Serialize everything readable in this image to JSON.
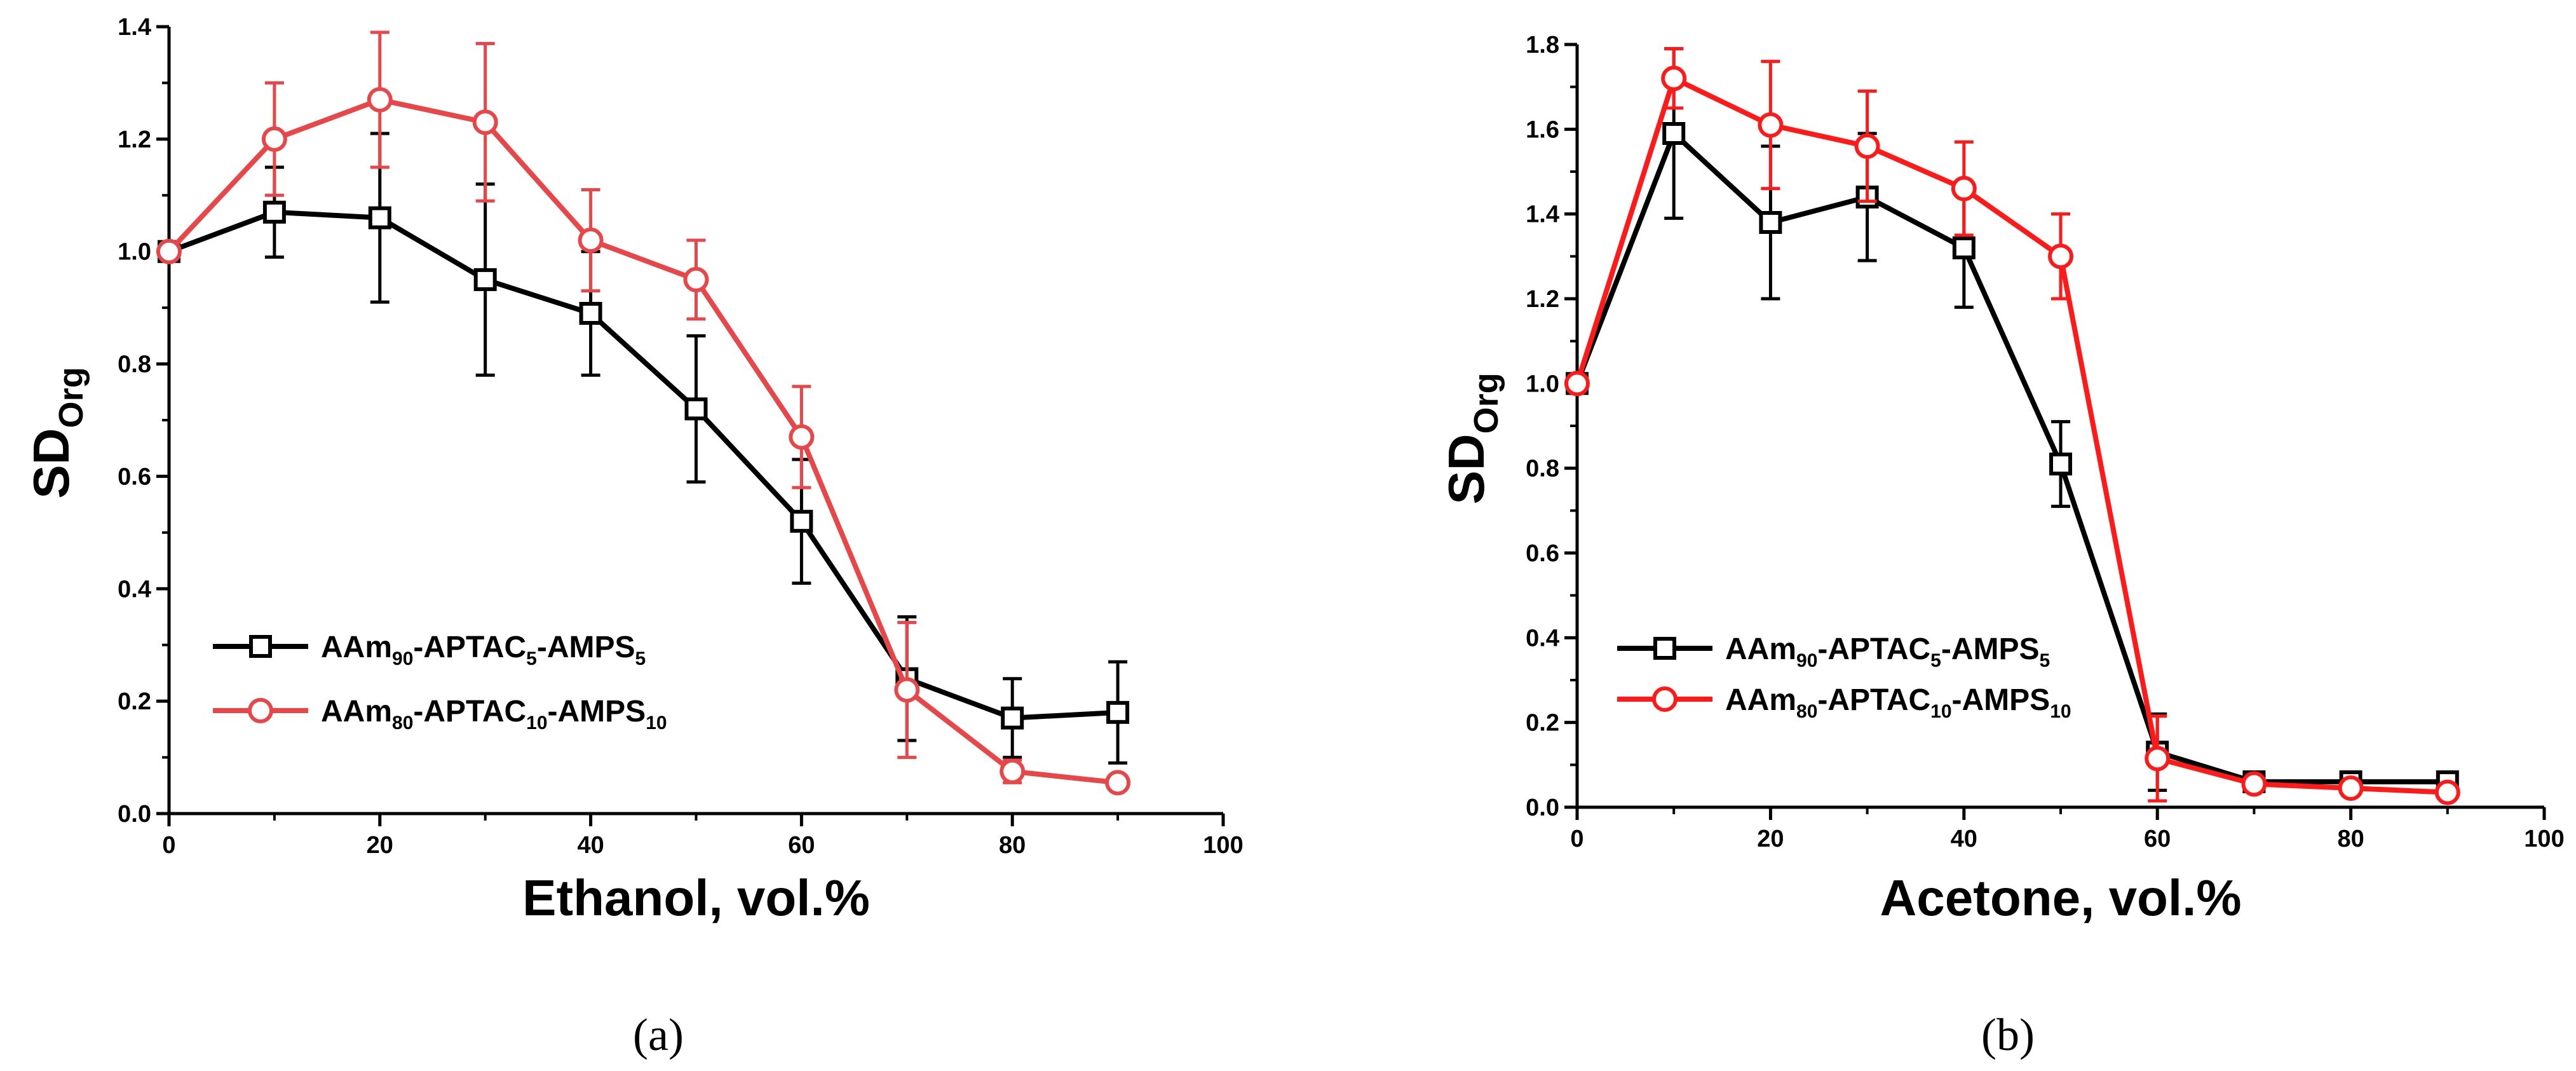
{
  "chart_data": [
    {
      "type": "line",
      "panel_label": "(a)",
      "xlabel": "Ethanol, vol.%",
      "ylabel": {
        "main": "SD",
        "sub": "Org"
      },
      "xlim": [
        0,
        100
      ],
      "ylim": [
        0,
        1.4
      ],
      "x_ticks": [
        0,
        20,
        40,
        60,
        80,
        100
      ],
      "y_ticks": [
        0.0,
        0.2,
        0.4,
        0.6,
        0.8,
        1.0,
        1.2,
        1.4
      ],
      "x_tick_labels": [
        "0",
        "20",
        "40",
        "60",
        "80",
        "100"
      ],
      "y_tick_labels": [
        "0.0",
        "0.2",
        "0.4",
        "0.6",
        "0.8",
        "1.0",
        "1.2",
        "1.4"
      ],
      "legend_position": "lower-left",
      "series": [
        {
          "name": "AAm90-APTAC5-AMPS5",
          "name_parts": [
            {
              "t": "AAm"
            },
            {
              "t": "90",
              "sub": true
            },
            {
              "t": "-APTAC"
            },
            {
              "t": "5",
              "sub": true
            },
            {
              "t": "-AMPS"
            },
            {
              "t": "5",
              "sub": true
            }
          ],
          "color": "#000000",
          "marker": "square",
          "x": [
            0,
            10,
            20,
            30,
            40,
            50,
            60,
            70,
            80,
            90
          ],
          "y": [
            1.0,
            1.07,
            1.06,
            0.95,
            0.89,
            0.72,
            0.52,
            0.24,
            0.17,
            0.18
          ],
          "err": [
            0,
            0.08,
            0.15,
            0.17,
            0.11,
            0.13,
            0.11,
            0.11,
            0.07,
            0.09
          ]
        },
        {
          "name": "AAm80-APTAC10-AMPS10",
          "name_parts": [
            {
              "t": "AAm"
            },
            {
              "t": "80",
              "sub": true
            },
            {
              "t": "-APTAC"
            },
            {
              "t": "10",
              "sub": true
            },
            {
              "t": "-AMPS"
            },
            {
              "t": "10",
              "sub": true
            }
          ],
          "color": "#e8474a",
          "marker": "circle",
          "x": [
            0,
            10,
            20,
            30,
            40,
            50,
            60,
            70,
            80,
            90
          ],
          "y": [
            1.0,
            1.2,
            1.27,
            1.23,
            1.02,
            0.95,
            0.67,
            0.22,
            0.075,
            0.055
          ],
          "err": [
            0,
            0.1,
            0.12,
            0.14,
            0.09,
            0.07,
            0.09,
            0.12,
            0.02,
            0.01
          ]
        }
      ]
    },
    {
      "type": "line",
      "panel_label": "(b)",
      "xlabel": "Acetone, vol.%",
      "ylabel": {
        "main": "SD",
        "sub": "Org"
      },
      "xlim": [
        0,
        100
      ],
      "ylim": [
        0,
        1.8
      ],
      "x_ticks": [
        0,
        20,
        40,
        60,
        80,
        100
      ],
      "y_ticks": [
        0.0,
        0.2,
        0.4,
        0.6,
        0.8,
        1.0,
        1.2,
        1.4,
        1.6,
        1.8
      ],
      "x_tick_labels": [
        "0",
        "20",
        "40",
        "60",
        "80",
        "100"
      ],
      "y_tick_labels": [
        "0.0",
        "0.2",
        "0.4",
        "0.6",
        "0.8",
        "1.0",
        "1.2",
        "1.4",
        "1.6",
        "1.8"
      ],
      "legend_position": "lower-left",
      "series": [
        {
          "name": "AAm90-APTAC5-AMPS5",
          "name_parts": [
            {
              "t": "AAm"
            },
            {
              "t": "90",
              "sub": true
            },
            {
              "t": "-APTAC"
            },
            {
              "t": "5",
              "sub": true
            },
            {
              "t": "-AMPS"
            },
            {
              "t": "5",
              "sub": true
            }
          ],
          "color": "#000000",
          "marker": "square",
          "x": [
            0,
            10,
            20,
            30,
            40,
            50,
            60,
            70,
            80,
            90
          ],
          "y": [
            1.0,
            1.59,
            1.38,
            1.44,
            1.32,
            0.81,
            0.13,
            0.06,
            0.06,
            0.06
          ],
          "err": [
            0,
            0.2,
            0.18,
            0.15,
            0.14,
            0.1,
            0.09,
            0.01,
            0.01,
            0.01
          ]
        },
        {
          "name": "AAm80-APTAC10-AMPS10",
          "name_parts": [
            {
              "t": "AAm"
            },
            {
              "t": "80",
              "sub": true
            },
            {
              "t": "-APTAC"
            },
            {
              "t": "10",
              "sub": true
            },
            {
              "t": "-AMPS"
            },
            {
              "t": "10",
              "sub": true
            }
          ],
          "color": "#ff1a1a",
          "marker": "circle",
          "x": [
            0,
            10,
            20,
            30,
            40,
            50,
            60,
            70,
            80,
            90
          ],
          "y": [
            1.0,
            1.72,
            1.61,
            1.56,
            1.46,
            1.3,
            0.115,
            0.055,
            0.045,
            0.035
          ],
          "err": [
            0,
            0.07,
            0.15,
            0.13,
            0.11,
            0.1,
            0.1,
            0.01,
            0.01,
            0.01
          ]
        }
      ]
    }
  ]
}
